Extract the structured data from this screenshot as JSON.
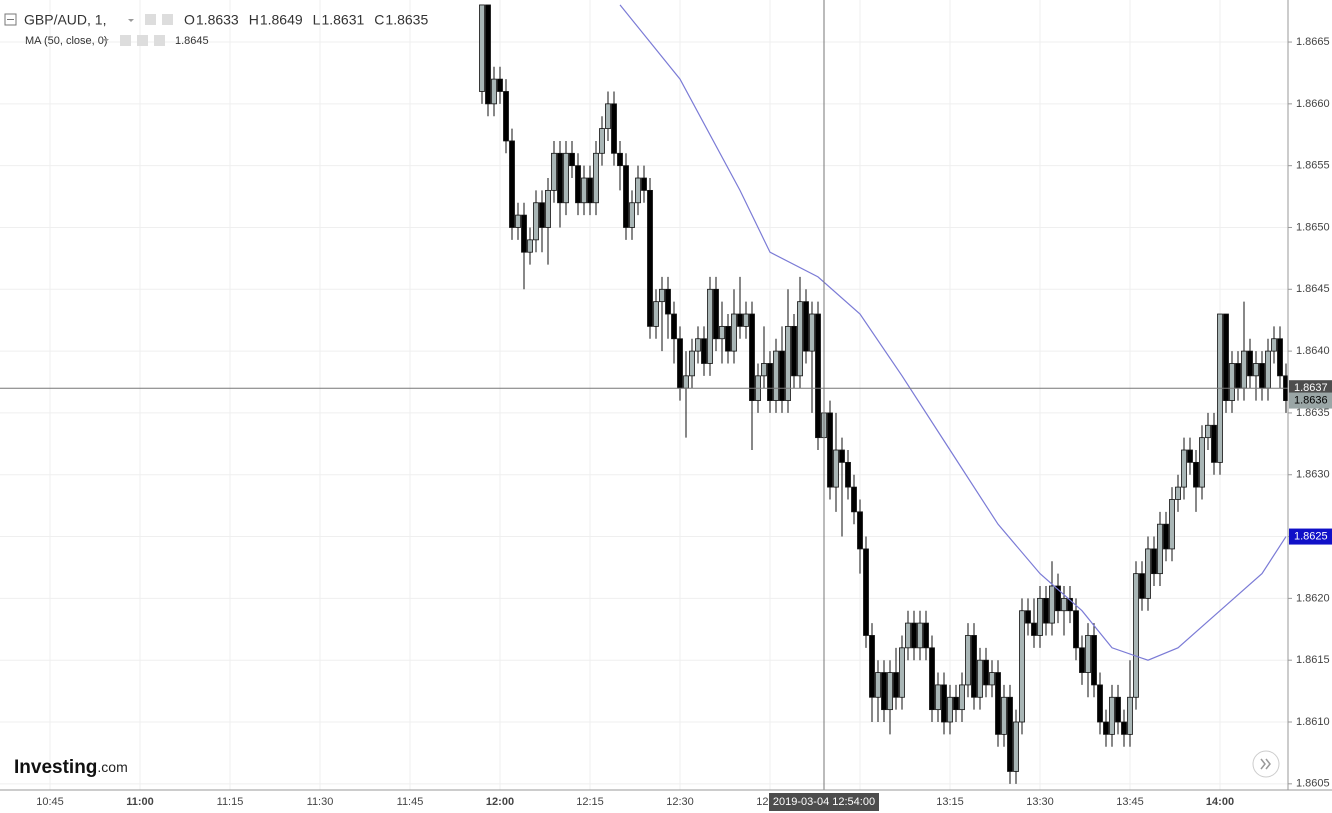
{
  "chart_data": {
    "type": "candlestick",
    "symbol": "GBP/AUD, 1,",
    "ohlc_legend": [
      {
        "label": "O",
        "value": 1.8633
      },
      {
        "label": "H",
        "value": 1.8649
      },
      {
        "label": "L",
        "value": 1.8631
      },
      {
        "label": "C",
        "value": 1.8635
      }
    ],
    "ma_label": "MA (50, close, 0)",
    "ma_value": 1.8645,
    "crosshair": {
      "time": "2019-03-04 12:54:00",
      "x": "12:54",
      "price": 1.8637
    },
    "logo": [
      "Investing",
      ".com"
    ],
    "xlim": [
      "10:37",
      "14:11"
    ],
    "ylim": [
      1.86045,
      1.86684
    ],
    "xticks": [
      "10:45",
      "11:00",
      "11:15",
      "11:30",
      "11:45",
      "12:00",
      "12:15",
      "12:30",
      "12:45",
      "13:00",
      "13:15",
      "13:30",
      "13:45",
      "14:00"
    ],
    "bold_hours": true,
    "yticks": [
      1.8605,
      {
        "value": 1.861,
        "label": "1.8610"
      },
      1.8615,
      {
        "value": 1.862,
        "label": "1.8620"
      },
      1.8625,
      {
        "value": 1.863,
        "label": "1.8630"
      },
      1.8635,
      {
        "value": 1.864,
        "label": "1.8640"
      },
      1.8645,
      {
        "value": 1.865,
        "label": "1.8650"
      },
      1.8655,
      {
        "value": 1.866,
        "label": "1.8660"
      },
      1.8665
    ],
    "grid": true,
    "up_color": "#a9b6b6",
    "down_color": "#000000",
    "ma_color": "#7b7bd6",
    "x": [
      "11:57",
      "11:58",
      "11:59",
      "12:00",
      "12:01",
      "12:02",
      "12:03",
      "12:04",
      "12:05",
      "12:06",
      "12:07",
      "12:08",
      "12:09",
      "12:10",
      "12:11",
      "12:12",
      "12:13",
      "12:14",
      "12:15",
      "12:16",
      "12:17",
      "12:18",
      "12:19",
      "12:20",
      "12:21",
      "12:22",
      "12:23",
      "12:24",
      "12:25",
      "12:26",
      "12:27",
      "12:28",
      "12:29",
      "12:30",
      "12:31",
      "12:32",
      "12:33",
      "12:34",
      "12:35",
      "12:36",
      "12:37",
      "12:38",
      "12:39",
      "12:40",
      "12:41",
      "12:42",
      "12:43",
      "12:44",
      "12:45",
      "12:46",
      "12:47",
      "12:48",
      "12:49",
      "12:50",
      "12:51",
      "12:52",
      "12:53",
      "12:54",
      "12:55",
      "12:56",
      "12:57",
      "12:58",
      "12:59",
      "13:00",
      "13:01",
      "13:02",
      "13:03",
      "13:04",
      "13:05",
      "13:06",
      "13:07",
      "13:08",
      "13:09",
      "13:10",
      "13:11",
      "13:12",
      "13:13",
      "13:14",
      "13:15",
      "13:16",
      "13:17",
      "13:18",
      "13:19",
      "13:20",
      "13:21",
      "13:22",
      "13:23",
      "13:24",
      "13:25",
      "13:26",
      "13:27",
      "13:28",
      "13:29",
      "13:30",
      "13:31",
      "13:32",
      "13:33",
      "13:34",
      "13:35",
      "13:36",
      "13:37",
      "13:38",
      "13:39",
      "13:40",
      "13:41",
      "13:42",
      "13:43",
      "13:44",
      "13:45",
      "13:46",
      "13:47",
      "13:48",
      "13:49",
      "13:50",
      "13:51",
      "13:52",
      "13:53",
      "13:54",
      "13:55",
      "13:56",
      "13:57",
      "13:58",
      "13:59",
      "14:00",
      "14:01",
      "14:02",
      "14:03",
      "14:04",
      "14:05",
      "14:06",
      "14:07",
      "14:08",
      "14:09",
      "14:10",
      "14:11"
    ],
    "ohlc": [
      [
        1.8661,
        1.8668,
        1.866,
        1.8668
      ],
      [
        1.8668,
        1.8668,
        1.8659,
        1.866
      ],
      [
        1.866,
        1.8663,
        1.8659,
        1.8662
      ],
      [
        1.8662,
        1.8663,
        1.866,
        1.8661
      ],
      [
        1.8661,
        1.8662,
        1.8656,
        1.8657
      ],
      [
        1.8657,
        1.8658,
        1.8649,
        1.865
      ],
      [
        1.865,
        1.8652,
        1.8649,
        1.8651
      ],
      [
        1.8651,
        1.8652,
        1.8645,
        1.8648
      ],
      [
        1.8648,
        1.865,
        1.8647,
        1.8649
      ],
      [
        1.8649,
        1.8653,
        1.8648,
        1.8652
      ],
      [
        1.8652,
        1.8653,
        1.8648,
        1.865
      ],
      [
        1.865,
        1.8654,
        1.8647,
        1.8653
      ],
      [
        1.8653,
        1.8657,
        1.8652,
        1.8656
      ],
      [
        1.8656,
        1.8657,
        1.865,
        1.8652
      ],
      [
        1.8652,
        1.8657,
        1.8651,
        1.8656
      ],
      [
        1.8656,
        1.8657,
        1.8654,
        1.8655
      ],
      [
        1.8655,
        1.8656,
        1.8651,
        1.8652
      ],
      [
        1.8652,
        1.8655,
        1.8651,
        1.8654
      ],
      [
        1.8654,
        1.8655,
        1.8651,
        1.8652
      ],
      [
        1.8652,
        1.8657,
        1.8651,
        1.8656
      ],
      [
        1.8656,
        1.8659,
        1.8655,
        1.8658
      ],
      [
        1.8658,
        1.8661,
        1.8657,
        1.866
      ],
      [
        1.866,
        1.8661,
        1.8655,
        1.8656
      ],
      [
        1.8656,
        1.8657,
        1.8653,
        1.8655
      ],
      [
        1.8655,
        1.8656,
        1.8649,
        1.865
      ],
      [
        1.865,
        1.8653,
        1.8649,
        1.8652
      ],
      [
        1.8652,
        1.8655,
        1.8651,
        1.8654
      ],
      [
        1.8654,
        1.8655,
        1.8652,
        1.8653
      ],
      [
        1.8653,
        1.8654,
        1.8641,
        1.8642
      ],
      [
        1.8642,
        1.8645,
        1.8641,
        1.8644
      ],
      [
        1.8644,
        1.8646,
        1.864,
        1.8645
      ],
      [
        1.8645,
        1.8646,
        1.8641,
        1.8643
      ],
      [
        1.8643,
        1.8644,
        1.8639,
        1.8641
      ],
      [
        1.8641,
        1.8642,
        1.8636,
        1.8637
      ],
      [
        1.8637,
        1.864,
        1.8633,
        1.8638
      ],
      [
        1.8638,
        1.8641,
        1.8637,
        1.864
      ],
      [
        1.864,
        1.8642,
        1.8639,
        1.8641
      ],
      [
        1.8641,
        1.8642,
        1.8638,
        1.8639
      ],
      [
        1.8639,
        1.8646,
        1.8638,
        1.8645
      ],
      [
        1.8645,
        1.8646,
        1.864,
        1.8641
      ],
      [
        1.8641,
        1.8644,
        1.8639,
        1.8642
      ],
      [
        1.8642,
        1.8643,
        1.8639,
        1.864
      ],
      [
        1.864,
        1.8645,
        1.8639,
        1.8643
      ],
      [
        1.8643,
        1.8646,
        1.8641,
        1.8642
      ],
      [
        1.8642,
        1.8644,
        1.8641,
        1.8643
      ],
      [
        1.8643,
        1.8644,
        1.8632,
        1.8636
      ],
      [
        1.8636,
        1.8639,
        1.8635,
        1.8638
      ],
      [
        1.8638,
        1.8642,
        1.8637,
        1.8639
      ],
      [
        1.8639,
        1.864,
        1.8635,
        1.8636
      ],
      [
        1.8636,
        1.8641,
        1.8635,
        1.864
      ],
      [
        1.864,
        1.8642,
        1.8635,
        1.8636
      ],
      [
        1.8636,
        1.8645,
        1.8635,
        1.8642
      ],
      [
        1.8642,
        1.8643,
        1.8637,
        1.8638
      ],
      [
        1.8638,
        1.8646,
        1.8637,
        1.8644
      ],
      [
        1.8644,
        1.8645,
        1.8639,
        1.864
      ],
      [
        1.864,
        1.8644,
        1.8635,
        1.8643
      ],
      [
        1.8643,
        1.8644,
        1.8632,
        1.8633
      ],
      [
        1.8633,
        1.8649,
        1.8631,
        1.8635
      ],
      [
        1.8635,
        1.8636,
        1.8628,
        1.8629
      ],
      [
        1.8629,
        1.8635,
        1.8627,
        1.8632
      ],
      [
        1.8632,
        1.8633,
        1.8625,
        1.8631
      ],
      [
        1.8631,
        1.8632,
        1.8628,
        1.8629
      ],
      [
        1.8629,
        1.863,
        1.8626,
        1.8627
      ],
      [
        1.8627,
        1.8628,
        1.8622,
        1.8624
      ],
      [
        1.8624,
        1.8625,
        1.8616,
        1.8617
      ],
      [
        1.8617,
        1.8618,
        1.861,
        1.8612
      ],
      [
        1.8612,
        1.8615,
        1.861,
        1.8614
      ],
      [
        1.8614,
        1.8615,
        1.861,
        1.8611
      ],
      [
        1.8611,
        1.8615,
        1.8609,
        1.8614
      ],
      [
        1.8614,
        1.8616,
        1.8611,
        1.8612
      ],
      [
        1.8612,
        1.8617,
        1.8611,
        1.8616
      ],
      [
        1.8616,
        1.8619,
        1.8615,
        1.8618
      ],
      [
        1.8618,
        1.8619,
        1.8615,
        1.8616
      ],
      [
        1.8616,
        1.8619,
        1.8615,
        1.8618
      ],
      [
        1.8618,
        1.8619,
        1.8615,
        1.8616
      ],
      [
        1.8616,
        1.8617,
        1.861,
        1.8611
      ],
      [
        1.8611,
        1.8614,
        1.861,
        1.8613
      ],
      [
        1.8613,
        1.8614,
        1.8609,
        1.861
      ],
      [
        1.861,
        1.8613,
        1.8609,
        1.8612
      ],
      [
        1.8612,
        1.8613,
        1.861,
        1.8611
      ],
      [
        1.8611,
        1.8614,
        1.861,
        1.8613
      ],
      [
        1.8613,
        1.8618,
        1.8612,
        1.8617
      ],
      [
        1.8617,
        1.8618,
        1.8611,
        1.8612
      ],
      [
        1.8612,
        1.8616,
        1.8611,
        1.8615
      ],
      [
        1.8615,
        1.8616,
        1.8612,
        1.8613
      ],
      [
        1.8613,
        1.8615,
        1.8612,
        1.8614
      ],
      [
        1.8614,
        1.8615,
        1.8608,
        1.8609
      ],
      [
        1.8609,
        1.8613,
        1.8608,
        1.8612
      ],
      [
        1.8612,
        1.8613,
        1.8605,
        1.8606
      ],
      [
        1.8606,
        1.8611,
        1.8605,
        1.861
      ],
      [
        1.861,
        1.862,
        1.8609,
        1.8619
      ],
      [
        1.8619,
        1.862,
        1.8617,
        1.8618
      ],
      [
        1.8618,
        1.862,
        1.8616,
        1.8617
      ],
      [
        1.8617,
        1.8621,
        1.8616,
        1.862
      ],
      [
        1.862,
        1.8621,
        1.8617,
        1.8618
      ],
      [
        1.8618,
        1.8623,
        1.8617,
        1.8621
      ],
      [
        1.8621,
        1.8622,
        1.8618,
        1.8619
      ],
      [
        1.8619,
        1.8621,
        1.8617,
        1.862
      ],
      [
        1.862,
        1.8621,
        1.8618,
        1.8619
      ],
      [
        1.8619,
        1.862,
        1.8615,
        1.8616
      ],
      [
        1.8616,
        1.8617,
        1.8613,
        1.8614
      ],
      [
        1.8614,
        1.8618,
        1.8612,
        1.8617
      ],
      [
        1.8617,
        1.8618,
        1.8612,
        1.8613
      ],
      [
        1.8613,
        1.8614,
        1.8609,
        1.861
      ],
      [
        1.861,
        1.8611,
        1.8608,
        1.8609
      ],
      [
        1.8609,
        1.8613,
        1.8608,
        1.8612
      ],
      [
        1.8612,
        1.8613,
        1.8609,
        1.861
      ],
      [
        1.861,
        1.8611,
        1.8608,
        1.8609
      ],
      [
        1.8609,
        1.8615,
        1.8608,
        1.8612
      ],
      [
        1.8612,
        1.8623,
        1.8611,
        1.8622
      ],
      [
        1.8622,
        1.8623,
        1.8619,
        1.862
      ],
      [
        1.862,
        1.8625,
        1.8619,
        1.8624
      ],
      [
        1.8624,
        1.8625,
        1.8621,
        1.8622
      ],
      [
        1.8622,
        1.8627,
        1.8621,
        1.8626
      ],
      [
        1.8626,
        1.8627,
        1.8623,
        1.8624
      ],
      [
        1.8624,
        1.8629,
        1.8623,
        1.8628
      ],
      [
        1.8628,
        1.863,
        1.8627,
        1.8629
      ],
      [
        1.8629,
        1.8633,
        1.8628,
        1.8632
      ],
      [
        1.8632,
        1.8633,
        1.863,
        1.8631
      ],
      [
        1.8631,
        1.8632,
        1.8627,
        1.8629
      ],
      [
        1.8629,
        1.8634,
        1.8628,
        1.8633
      ],
      [
        1.8633,
        1.8635,
        1.8632,
        1.8634
      ],
      [
        1.8634,
        1.8635,
        1.863,
        1.8631
      ],
      [
        1.8631,
        1.8643,
        1.863,
        1.8643
      ],
      [
        1.8643,
        1.8643,
        1.8635,
        1.8636
      ],
      [
        1.8636,
        1.864,
        1.8635,
        1.8639
      ],
      [
        1.8639,
        1.864,
        1.8636,
        1.8637
      ],
      [
        1.8637,
        1.8644,
        1.8636,
        1.864
      ],
      [
        1.864,
        1.8641,
        1.8637,
        1.8638
      ],
      [
        1.8638,
        1.864,
        1.8636,
        1.8639
      ],
      [
        1.8639,
        1.864,
        1.8636,
        1.8637
      ],
      [
        1.8637,
        1.8641,
        1.8636,
        1.864
      ],
      [
        1.864,
        1.8642,
        1.8639,
        1.8641
      ],
      [
        1.8641,
        1.8642,
        1.8637,
        1.8638
      ],
      [
        1.8638,
        1.8639,
        1.8635,
        1.8636
      ]
    ],
    "ma": {
      "name": "MA (50, close, 0)",
      "x": [
        "12:20",
        "12:30",
        "12:40",
        "12:45",
        "12:53",
        "13:00",
        "13:07",
        "13:15",
        "13:23",
        "13:30",
        "13:37",
        "13:42",
        "13:48",
        "13:53",
        "14:00",
        "14:07",
        "14:11"
      ],
      "values": [
        1.8668,
        1.8662,
        1.8653,
        1.8648,
        1.8646,
        1.8643,
        1.8638,
        1.8632,
        1.8626,
        1.8622,
        1.8619,
        1.8616,
        1.8615,
        1.8616,
        1.8619,
        1.8622,
        1.8625
      ]
    }
  }
}
